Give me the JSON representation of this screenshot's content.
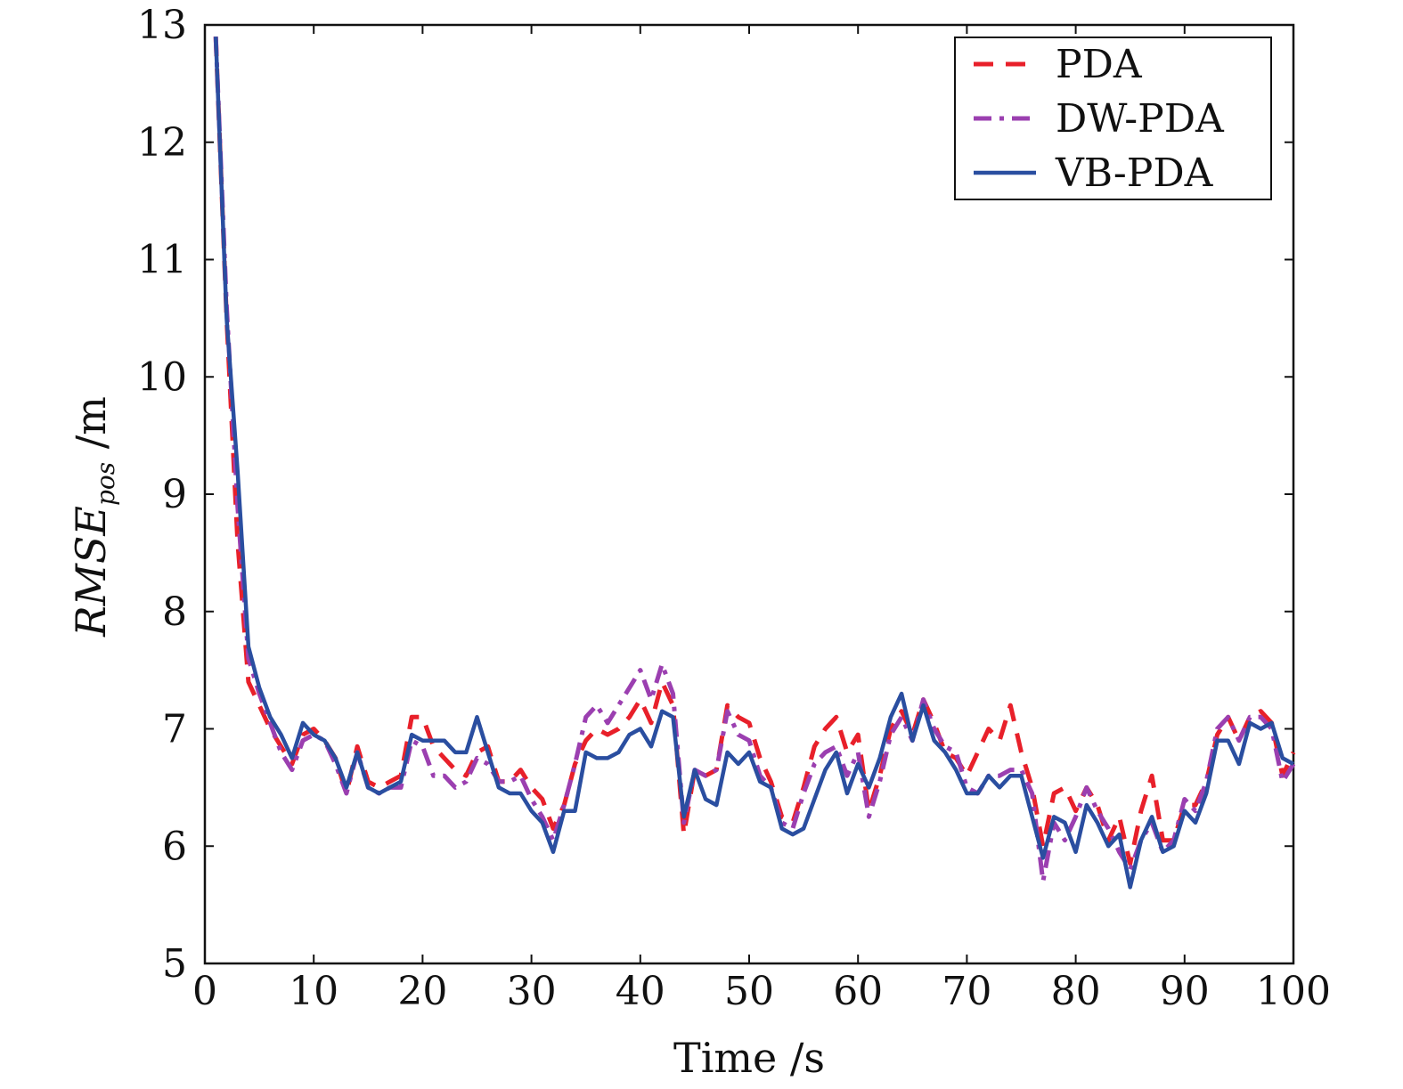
{
  "chart_data": {
    "type": "line",
    "title": "",
    "xlabel": "Time /s",
    "ylabel_main": "RMSE",
    "ylabel_sub": "pos",
    "ylabel_unit": " /m",
    "xlim": [
      0,
      100
    ],
    "ylim": [
      5,
      13
    ],
    "xticks": [
      0,
      10,
      20,
      30,
      40,
      50,
      60,
      70,
      80,
      90,
      100
    ],
    "yticks": [
      5,
      6,
      7,
      8,
      9,
      10,
      11,
      12,
      13
    ],
    "grid": false,
    "legend_position": "top-right",
    "x": [
      1,
      2,
      3,
      4,
      5,
      6,
      7,
      8,
      9,
      10,
      11,
      12,
      13,
      14,
      15,
      16,
      17,
      18,
      19,
      20,
      21,
      22,
      23,
      24,
      25,
      26,
      27,
      28,
      29,
      30,
      31,
      32,
      33,
      34,
      35,
      36,
      37,
      38,
      39,
      40,
      41,
      42,
      43,
      44,
      45,
      46,
      47,
      48,
      49,
      50,
      51,
      52,
      53,
      54,
      55,
      56,
      57,
      58,
      59,
      60,
      61,
      62,
      63,
      64,
      65,
      66,
      67,
      68,
      69,
      70,
      71,
      72,
      73,
      74,
      75,
      76,
      77,
      78,
      79,
      80,
      81,
      82,
      83,
      84,
      85,
      86,
      87,
      88,
      89,
      90,
      91,
      92,
      93,
      94,
      95,
      96,
      97,
      98,
      99,
      100
    ],
    "series": [
      {
        "name": "PDA",
        "color": "#e8202a",
        "style": "dashed",
        "values": [
          12.9,
          10.5,
          8.6,
          7.4,
          7.2,
          7.0,
          6.85,
          6.7,
          6.95,
          7.0,
          6.9,
          6.75,
          6.45,
          6.85,
          6.55,
          6.5,
          6.55,
          6.6,
          7.1,
          7.1,
          6.85,
          6.75,
          6.65,
          6.6,
          6.8,
          6.85,
          6.55,
          6.55,
          6.65,
          6.5,
          6.4,
          6.15,
          6.35,
          6.7,
          6.9,
          7.0,
          6.95,
          7.0,
          7.1,
          7.25,
          7.05,
          7.4,
          7.2,
          6.1,
          6.65,
          6.6,
          6.65,
          7.2,
          7.1,
          7.05,
          6.75,
          6.55,
          6.25,
          6.2,
          6.5,
          6.85,
          7.0,
          7.1,
          6.8,
          6.95,
          6.3,
          6.6,
          7.0,
          7.15,
          6.95,
          7.25,
          7.05,
          6.8,
          6.75,
          6.6,
          6.8,
          7.0,
          6.9,
          7.2,
          6.8,
          6.5,
          6.0,
          6.45,
          6.5,
          6.3,
          6.5,
          6.35,
          6.05,
          6.25,
          5.85,
          6.3,
          6.6,
          6.05,
          6.05,
          6.35,
          6.35,
          6.55,
          6.95,
          7.1,
          6.9,
          7.1,
          7.15,
          7.05,
          6.6,
          6.8
        ]
      },
      {
        "name": "DW-PDA",
        "color": "#9b3fb0",
        "style": "dashdot",
        "values": [
          12.9,
          10.6,
          8.9,
          7.6,
          7.3,
          7.05,
          6.8,
          6.65,
          6.9,
          6.95,
          6.9,
          6.7,
          6.45,
          6.8,
          6.5,
          6.45,
          6.5,
          6.5,
          6.9,
          6.85,
          6.6,
          6.6,
          6.5,
          6.55,
          6.75,
          6.7,
          6.55,
          6.55,
          6.6,
          6.4,
          6.25,
          6.05,
          6.35,
          6.7,
          7.1,
          7.2,
          7.05,
          7.2,
          7.35,
          7.5,
          7.25,
          7.55,
          7.3,
          6.2,
          6.65,
          6.6,
          6.65,
          7.15,
          6.95,
          6.9,
          6.6,
          6.5,
          6.2,
          6.15,
          6.45,
          6.7,
          6.8,
          6.85,
          6.6,
          6.8,
          6.25,
          6.55,
          6.95,
          7.1,
          6.9,
          7.25,
          7.0,
          6.85,
          6.8,
          6.5,
          6.45,
          6.6,
          6.6,
          6.65,
          6.65,
          6.45,
          5.7,
          6.2,
          6.05,
          6.25,
          6.5,
          6.3,
          6.15,
          5.95,
          5.8,
          6.05,
          6.2,
          5.95,
          6.05,
          6.4,
          6.3,
          6.55,
          7.0,
          7.1,
          6.9,
          7.1,
          7.1,
          7.0,
          6.55,
          6.7
        ]
      },
      {
        "name": "VB-PDA",
        "color": "#2a4ea0",
        "style": "solid",
        "values": [
          12.9,
          10.5,
          9.2,
          7.7,
          7.35,
          7.1,
          6.95,
          6.75,
          7.05,
          6.95,
          6.9,
          6.75,
          6.5,
          6.8,
          6.5,
          6.45,
          6.5,
          6.55,
          6.95,
          6.9,
          6.9,
          6.9,
          6.8,
          6.8,
          7.1,
          6.8,
          6.5,
          6.45,
          6.45,
          6.3,
          6.2,
          5.95,
          6.3,
          6.3,
          6.8,
          6.75,
          6.75,
          6.8,
          6.95,
          7.0,
          6.85,
          7.15,
          7.1,
          6.25,
          6.65,
          6.4,
          6.35,
          6.8,
          6.7,
          6.8,
          6.55,
          6.5,
          6.15,
          6.1,
          6.15,
          6.4,
          6.65,
          6.8,
          6.45,
          6.7,
          6.5,
          6.75,
          7.1,
          7.3,
          6.9,
          7.2,
          6.9,
          6.8,
          6.65,
          6.45,
          6.45,
          6.6,
          6.5,
          6.6,
          6.6,
          6.25,
          5.9,
          6.25,
          6.2,
          5.95,
          6.35,
          6.2,
          6.0,
          6.1,
          5.65,
          6.05,
          6.25,
          5.95,
          6.0,
          6.3,
          6.2,
          6.45,
          6.9,
          6.9,
          6.7,
          7.05,
          7.0,
          7.05,
          6.75,
          6.7
        ]
      }
    ]
  }
}
